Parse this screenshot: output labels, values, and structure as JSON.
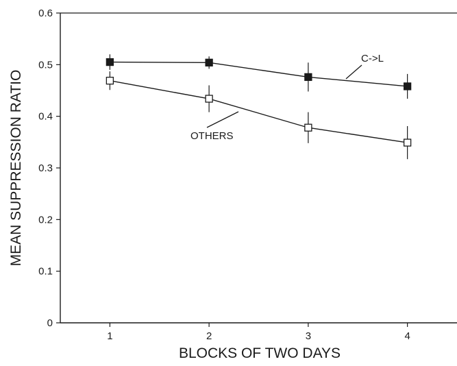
{
  "chart_data": {
    "type": "line",
    "xlabel": "BLOCKS OF TWO DAYS",
    "ylabel": "MEAN SUPPRESSION RATIO",
    "x": [
      1,
      2,
      3,
      4
    ],
    "xlim": [
      0.5,
      4.5
    ],
    "ylim": [
      0,
      0.6
    ],
    "xticks": [
      "1",
      "2",
      "3",
      "4"
    ],
    "yticks": [
      "0",
      "0.1",
      "0.2",
      "0.3",
      "0.4",
      "0.5",
      "0.6"
    ],
    "grid": false,
    "legend": "none",
    "series": [
      {
        "name": "C->L",
        "marker": "filled-square",
        "values": [
          0.505,
          0.504,
          0.476,
          0.458
        ],
        "error": [
          0.015,
          0.012,
          0.028,
          0.024
        ]
      },
      {
        "name": "OTHERS",
        "marker": "open-square",
        "values": [
          0.469,
          0.434,
          0.378,
          0.349
        ],
        "error": [
          0.018,
          0.026,
          0.03,
          0.032
        ]
      }
    ],
    "annotations": [
      {
        "text": "C->L",
        "series": 0
      },
      {
        "text": "OTHERS",
        "series": 1
      }
    ]
  }
}
